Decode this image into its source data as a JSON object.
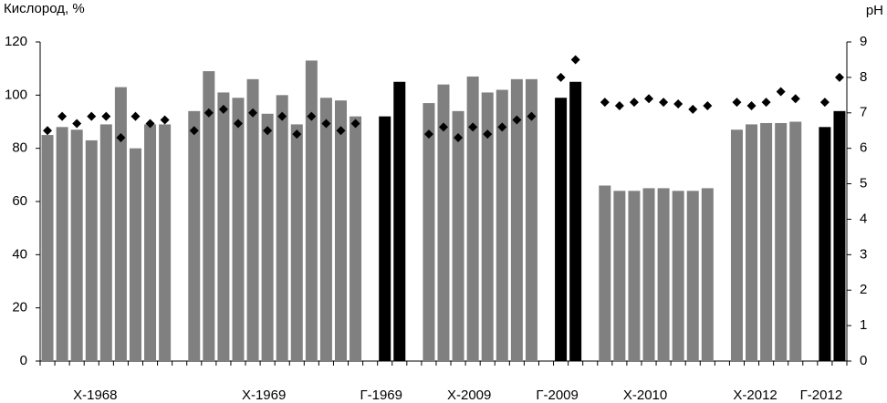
{
  "chart_data": {
    "type": "bar",
    "y_label": "Кислород, %",
    "y2_label": "pH",
    "ylim": [
      0,
      120
    ],
    "yticks": [
      0,
      20,
      40,
      60,
      80,
      100,
      120
    ],
    "y2lim": [
      0,
      9
    ],
    "y2ticks": [
      0,
      1,
      2,
      3,
      4,
      5,
      6,
      7,
      8,
      9
    ],
    "marker_color": "#000000",
    "groups": [
      {
        "label": "Х-1968",
        "color": "#808080",
        "values": [
          85,
          88,
          87,
          83,
          89,
          103,
          80,
          89,
          89
        ],
        "ph": [
          6.5,
          6.9,
          6.7,
          6.9,
          6.9,
          6.3,
          6.9,
          6.7,
          6.8
        ]
      },
      {
        "label": "Х-1969",
        "color": "#808080",
        "values": [
          94,
          109,
          101,
          99,
          106,
          93,
          100,
          89,
          113,
          99,
          98,
          92
        ],
        "ph": [
          6.5,
          7.0,
          7.1,
          6.7,
          7.0,
          6.5,
          6.9,
          6.4,
          6.9,
          6.7,
          6.5,
          6.7
        ]
      },
      {
        "label": "Г-1969",
        "color": "#000000",
        "values": [
          92,
          105
        ],
        "ph": [
          null,
          null
        ]
      },
      {
        "label": "Х-2009",
        "color": "#808080",
        "values": [
          97,
          104,
          94,
          107,
          101,
          102,
          106,
          106
        ],
        "ph": [
          6.4,
          6.6,
          6.3,
          6.6,
          6.4,
          6.6,
          6.8,
          6.9
        ]
      },
      {
        "label": "Г-2009",
        "color": "#000000",
        "values": [
          99,
          105
        ],
        "ph": [
          8.0,
          8.5
        ]
      },
      {
        "label": "Х-2010",
        "color": "#808080",
        "values": [
          66,
          64,
          64,
          65,
          65,
          64,
          64,
          65
        ],
        "ph": [
          7.3,
          7.2,
          7.3,
          7.4,
          7.3,
          7.25,
          7.1,
          7.2
        ]
      },
      {
        "label": "Х-2012",
        "color": "#808080",
        "values": [
          87,
          89,
          89.5,
          89.5,
          90
        ],
        "ph": [
          7.3,
          7.2,
          7.3,
          7.6,
          7.4
        ]
      },
      {
        "label": "Г-2012",
        "color": "#000000",
        "values": [
          88,
          94
        ],
        "ph": [
          7.3,
          8.0
        ]
      }
    ]
  }
}
